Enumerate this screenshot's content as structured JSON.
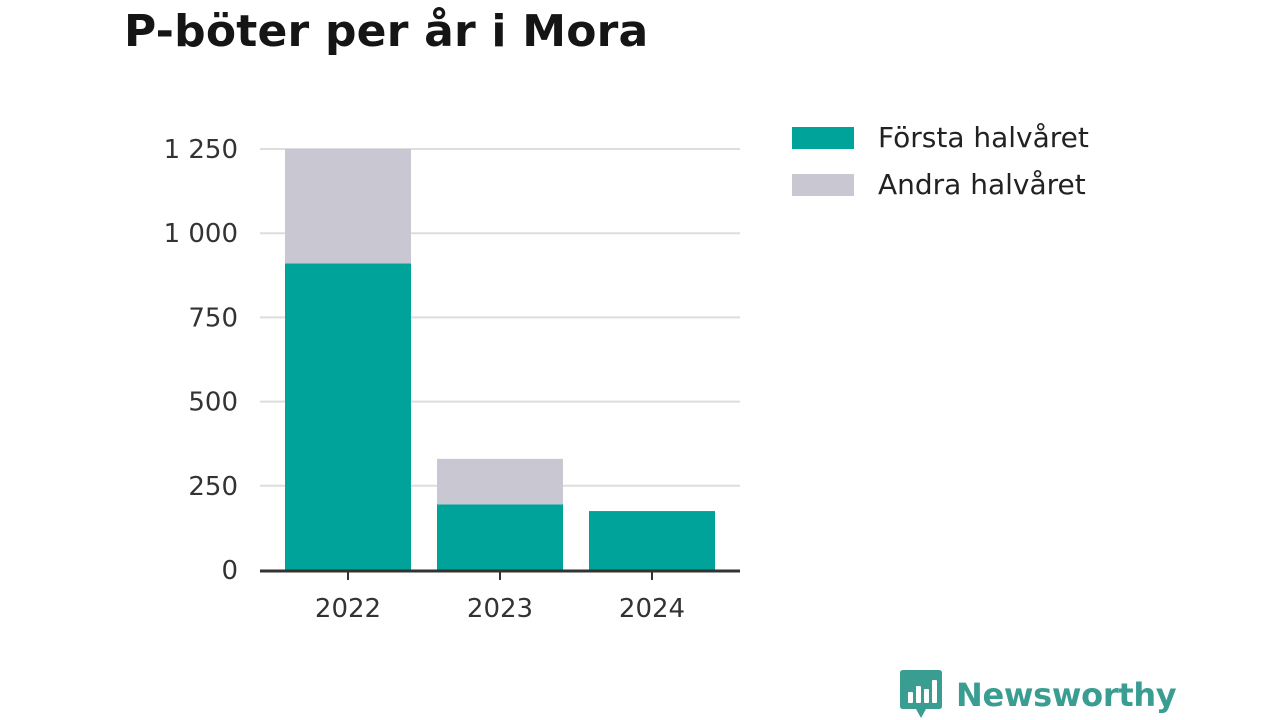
{
  "title": "P-böter per år i Mora",
  "brand": {
    "name": "Newsworthy",
    "icon": "newsworthy-bar-chart-icon"
  },
  "colors": {
    "first_half": "#00a39a",
    "second_half": "#c8c7d2",
    "grid": "#dddddd",
    "axis": "#333333",
    "brand": "#3a9d92"
  },
  "chart_data": {
    "type": "bar",
    "stacked": true,
    "title": "P-böter per år i Mora",
    "categories": [
      "2022",
      "2023",
      "2024"
    ],
    "series": [
      {
        "name": "Första halvåret",
        "values": [
          910,
          195,
          175
        ]
      },
      {
        "name": "Andra halvåret",
        "values": [
          340,
          135,
          0
        ]
      }
    ],
    "ylim": [
      0,
      1250
    ],
    "yticks": [
      0,
      250,
      500,
      750,
      1000,
      1250
    ],
    "ytick_labels": [
      "0",
      "250",
      "500",
      "750",
      "1 000",
      "1 250"
    ],
    "grid": true,
    "legend_position": "top-right"
  }
}
